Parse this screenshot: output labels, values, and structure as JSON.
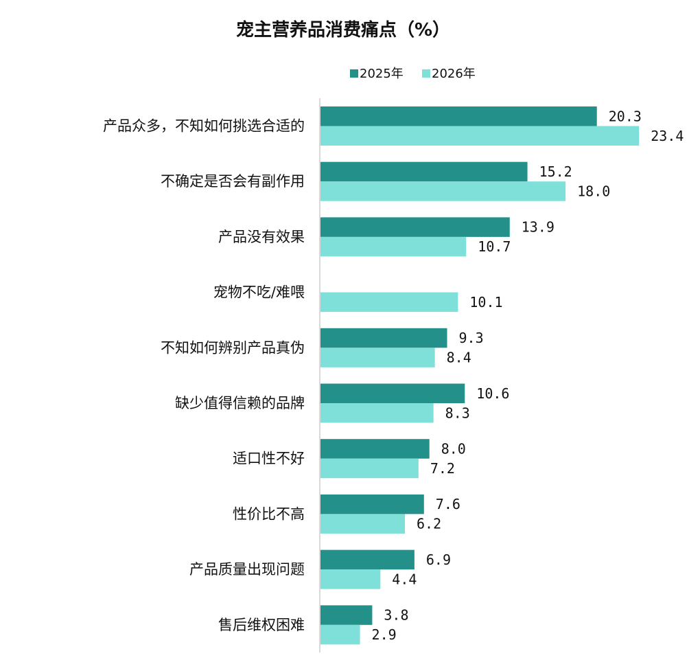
{
  "chart_data": {
    "type": "bar",
    "orientation": "horizontal",
    "title": "宠主营养品消费痛点（%）",
    "categories": [
      "产品众多，不知如何挑选合适的",
      "不确定是否会有副作用",
      "产品没有效果",
      "宠物不吃/难喂",
      "不知如何辨别产品真伪",
      "缺少值得信赖的品牌",
      "适口性不好",
      "性价比不高",
      "产品质量出现问题",
      "售后维权困难"
    ],
    "series": [
      {
        "name": "2025年",
        "color": "#23918A",
        "values": [
          20.3,
          15.2,
          13.9,
          null,
          9.3,
          10.6,
          8.0,
          7.6,
          6.9,
          3.8
        ],
        "labels": [
          "20.3",
          "15.2",
          "13.9",
          "",
          "9.3",
          "10.6",
          "8.0",
          "7.6",
          "6.9",
          "3.8"
        ]
      },
      {
        "name": "2026年",
        "color": "#7EE0D8",
        "values": [
          23.4,
          18.0,
          10.7,
          10.1,
          8.4,
          8.3,
          7.2,
          6.2,
          4.4,
          2.9
        ],
        "labels": [
          "23.4",
          "18.0",
          "10.7",
          "10.1",
          "8.4",
          "8.3",
          "7.2",
          "6.2",
          "4.4",
          "2.9"
        ]
      }
    ],
    "xlim": [
      0,
      25
    ],
    "grid": false,
    "legend_position": "top"
  }
}
